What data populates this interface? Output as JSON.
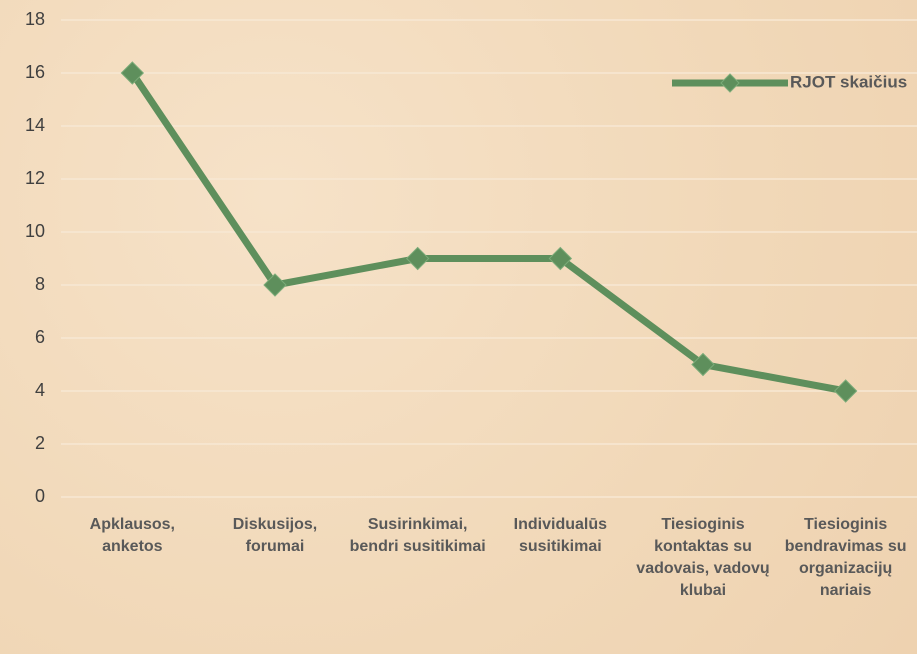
{
  "chart_data": {
    "type": "line",
    "categories": [
      "Apklausos, anketos",
      "Diskusijos, forumai",
      "Susirinkimai, bendri susitikimai",
      "Individualūs susitikimai",
      "Tiesioginis kontaktas su vadovais, vadovų klubai",
      "Tiesioginis bendravimas su organizacijų nariais"
    ],
    "series": [
      {
        "name": "RJOT skaičius",
        "color": "#5e8f5c",
        "values": [
          16,
          8,
          9,
          9,
          5,
          4
        ]
      }
    ],
    "ylim": [
      0,
      18
    ],
    "yticks": [
      0,
      2,
      4,
      6,
      8,
      10,
      12,
      14,
      16,
      18
    ],
    "grid": true,
    "legend": "top-right"
  }
}
